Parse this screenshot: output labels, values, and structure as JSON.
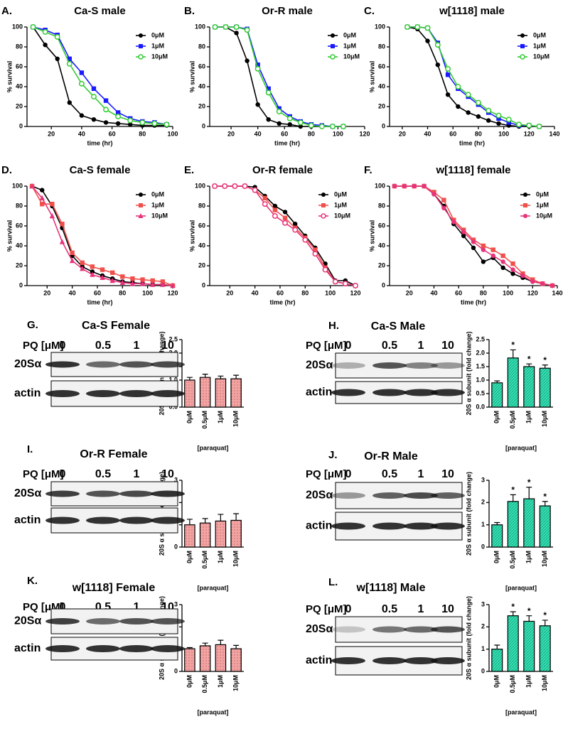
{
  "chart_data": [
    {
      "type": "line",
      "panel": "A.",
      "title": "Ca-S male",
      "xlabel": "time (hr)",
      "ylabel": "% survival",
      "x": [
        8,
        16,
        24,
        32,
        40,
        48,
        56,
        64,
        72,
        80,
        88,
        96
      ],
      "xlim": [
        4,
        100
      ],
      "xticks": [
        20,
        40,
        60,
        80,
        100
      ],
      "ylim": [
        0,
        100
      ],
      "yticks": [
        0,
        20,
        40,
        60,
        80,
        100
      ],
      "series": [
        {
          "name": "0μM",
          "color": "#000000",
          "marker": "circle",
          "values": [
            100,
            82,
            68,
            24,
            11,
            7,
            4,
            3,
            2,
            1,
            1,
            1
          ]
        },
        {
          "name": "1μM",
          "color": "#1a1aff",
          "marker": "square",
          "values": [
            100,
            97,
            92,
            68,
            54,
            38,
            26,
            14,
            8,
            5,
            4,
            2
          ]
        },
        {
          "name": "10μM",
          "color": "#33cc33",
          "marker": "open-circle",
          "values": [
            100,
            95,
            90,
            63,
            43,
            30,
            17,
            10,
            6,
            4,
            3,
            2
          ]
        }
      ]
    },
    {
      "type": "line",
      "panel": "B.",
      "title": "Or-R male",
      "xlabel": "time (hr)",
      "ylabel": "% survival",
      "x": [
        8,
        16,
        24,
        32,
        40,
        48,
        56,
        64,
        72,
        80,
        88,
        96,
        104
      ],
      "xlim": [
        4,
        120
      ],
      "xticks": [
        20,
        40,
        60,
        80,
        100,
        120
      ],
      "ylim": [
        0,
        100
      ],
      "yticks": [
        0,
        20,
        40,
        60,
        80,
        100
      ],
      "series": [
        {
          "name": "0μM",
          "color": "#000000",
          "marker": "circle",
          "values": [
            100,
            100,
            94,
            66,
            22,
            7,
            3,
            2,
            0,
            0,
            0,
            0,
            0
          ]
        },
        {
          "name": "1μM",
          "color": "#1a1aff",
          "marker": "square",
          "values": [
            100,
            100,
            100,
            98,
            62,
            38,
            18,
            10,
            5,
            2,
            1,
            0,
            0
          ]
        },
        {
          "name": "10μM",
          "color": "#33cc33",
          "marker": "open-circle",
          "values": [
            100,
            100,
            100,
            97,
            58,
            34,
            15,
            8,
            4,
            1,
            0,
            0,
            0
          ]
        }
      ]
    },
    {
      "type": "line",
      "panel": "C.",
      "title": "w[1118] male",
      "xlabel": "time (hr)",
      "ylabel": "% survival",
      "x": [
        24,
        32,
        40,
        48,
        56,
        64,
        72,
        80,
        88,
        96,
        104,
        112,
        120,
        128
      ],
      "xlim": [
        10,
        140
      ],
      "xticks": [
        20,
        40,
        60,
        80,
        100,
        120,
        140
      ],
      "ylim": [
        0,
        100
      ],
      "yticks": [
        0,
        20,
        40,
        60,
        80,
        100
      ],
      "series": [
        {
          "name": "0μM",
          "color": "#000000",
          "marker": "circle",
          "values": [
            100,
            98,
            86,
            62,
            32,
            20,
            14,
            10,
            6,
            3,
            1,
            0,
            0,
            0
          ]
        },
        {
          "name": "1μM",
          "color": "#1a1aff",
          "marker": "square",
          "values": [
            100,
            100,
            99,
            84,
            52,
            38,
            30,
            22,
            14,
            8,
            4,
            1,
            1,
            0
          ]
        },
        {
          "name": "10μM",
          "color": "#33cc33",
          "marker": "open-circle",
          "values": [
            100,
            100,
            99,
            82,
            58,
            40,
            32,
            24,
            16,
            11,
            7,
            2,
            1,
            0
          ]
        }
      ]
    },
    {
      "type": "line",
      "panel": "D.",
      "title": "Ca-S female",
      "xlabel": "time (hr)",
      "ylabel": "% survival",
      "x": [
        8,
        16,
        24,
        32,
        40,
        48,
        56,
        64,
        72,
        80,
        88,
        96,
        104,
        112,
        120
      ],
      "xlim": [
        4,
        120
      ],
      "xticks": [
        20,
        40,
        60,
        80,
        100,
        120
      ],
      "ylim": [
        0,
        100
      ],
      "yticks": [
        0,
        20,
        40,
        60,
        80,
        100
      ],
      "series": [
        {
          "name": "0μM",
          "color": "#000000",
          "marker": "circle",
          "values": [
            100,
            96,
            80,
            58,
            30,
            19,
            14,
            10,
            7,
            4,
            3,
            2,
            1,
            1,
            0
          ]
        },
        {
          "name": "1μM",
          "color": "#f0504c",
          "marker": "square",
          "values": [
            100,
            82,
            82,
            62,
            33,
            23,
            19,
            16,
            13,
            9,
            7,
            6,
            5,
            4,
            0
          ]
        },
        {
          "name": "10μM",
          "color": "#e8337a",
          "marker": "triangle",
          "values": [
            100,
            88,
            70,
            44,
            25,
            17,
            11,
            8,
            5,
            3,
            2,
            2,
            1,
            1,
            0
          ]
        }
      ]
    },
    {
      "type": "line",
      "panel": "E.",
      "title": "Or-R female",
      "xlabel": "time (hr)",
      "ylabel": "% survival",
      "x": [
        8,
        16,
        24,
        32,
        40,
        48,
        56,
        64,
        72,
        80,
        88,
        96,
        104,
        112,
        120
      ],
      "xlim": [
        4,
        120
      ],
      "xticks": [
        20,
        40,
        60,
        80,
        100,
        120
      ],
      "ylim": [
        0,
        100
      ],
      "yticks": [
        0,
        20,
        40,
        60,
        80,
        100
      ],
      "series": [
        {
          "name": "0μM",
          "color": "#000000",
          "marker": "circle",
          "values": [
            100,
            100,
            100,
            100,
            99,
            90,
            80,
            74,
            62,
            50,
            38,
            22,
            5,
            5,
            0
          ]
        },
        {
          "name": "1μM",
          "color": "#f0504c",
          "marker": "square",
          "values": [
            100,
            100,
            100,
            100,
            96,
            88,
            76,
            68,
            58,
            48,
            36,
            18,
            4,
            2,
            0
          ]
        },
        {
          "name": "10μM",
          "color": "#e8337a",
          "marker": "open-circle",
          "values": [
            100,
            100,
            100,
            100,
            96,
            82,
            70,
            63,
            56,
            46,
            32,
            16,
            4,
            2,
            0
          ]
        }
      ]
    },
    {
      "type": "line",
      "panel": "F.",
      "title": "w[1118] female",
      "xlabel": "time (hr)",
      "ylabel": "% survival",
      "x": [
        8,
        16,
        24,
        32,
        40,
        48,
        56,
        64,
        72,
        80,
        88,
        96,
        104,
        112,
        120,
        128,
        136
      ],
      "xlim": [
        4,
        140
      ],
      "xticks": [
        20,
        40,
        60,
        80,
        100,
        120,
        140
      ],
      "ylim": [
        0,
        100
      ],
      "yticks": [
        0,
        20,
        40,
        60,
        80,
        100
      ],
      "series": [
        {
          "name": "0μM",
          "color": "#000000",
          "marker": "circle",
          "values": [
            100,
            100,
            100,
            100,
            92,
            80,
            62,
            50,
            38,
            24,
            28,
            18,
            12,
            8,
            4,
            2,
            0
          ]
        },
        {
          "name": "1μM",
          "color": "#f0504c",
          "marker": "square",
          "values": [
            100,
            100,
            100,
            100,
            94,
            86,
            66,
            56,
            46,
            40,
            36,
            30,
            22,
            12,
            6,
            2,
            0
          ]
        },
        {
          "name": "10μM",
          "color": "#e8337a",
          "marker": "circle",
          "values": [
            100,
            100,
            100,
            100,
            92,
            78,
            64,
            54,
            44,
            36,
            30,
            24,
            16,
            10,
            4,
            2,
            0
          ]
        }
      ]
    },
    {
      "type": "bar",
      "ylabel": "20S α subunit (fold change)",
      "xlabel": "[paraquat]",
      "categories": [
        "0μM",
        "0.5μM",
        "1μM",
        "10μM"
      ],
      "values": [
        1.0,
        1.1,
        1.05,
        1.05
      ],
      "errors": [
        0.1,
        0.12,
        0.1,
        0.13
      ],
      "color": "#f4a3a3",
      "pattern": "dots",
      "ylim": [
        0,
        2.5
      ],
      "yticks": [
        {
          "value": 0,
          "label": "0.0"
        },
        0.5,
        {
          "value": 1,
          "label": "1.0"
        },
        1.5,
        {
          "value": 2,
          "label": "2.0"
        },
        2.5
      ]
    },
    {
      "type": "bar",
      "ylabel": "20S α subunit (fold change)",
      "xlabel": "[paraquat]",
      "categories": [
        "0μM",
        "0.5μM",
        "1μM",
        "10μM"
      ],
      "values": [
        0.9,
        1.82,
        1.5,
        1.44
      ],
      "errors": [
        0.07,
        0.3,
        0.1,
        0.12
      ],
      "significance": [
        null,
        "*",
        "*",
        "*"
      ],
      "color": "#33e0b0",
      "pattern": "hatch",
      "ylim": [
        0,
        2.5
      ],
      "yticks": [
        {
          "value": 0,
          "label": "0.0"
        },
        0.5,
        {
          "value": 1,
          "label": "1.0"
        },
        1.5,
        {
          "value": 2,
          "label": "2.0"
        },
        2.5
      ]
    },
    {
      "type": "bar",
      "ylabel": "20S α subunit (fold change)",
      "xlabel": "[paraquat]",
      "categories": [
        "0μM",
        "0.5μM",
        "1μM",
        "10μM"
      ],
      "values": [
        1.0,
        1.08,
        1.17,
        1.2
      ],
      "errors": [
        0.25,
        0.2,
        0.3,
        0.3
      ],
      "color": "#f4a3a3",
      "pattern": "dots",
      "ylim": [
        0,
        3
      ],
      "yticks": [
        0,
        1,
        2,
        3
      ]
    },
    {
      "type": "bar",
      "ylabel": "20S α subunit (fold change)",
      "xlabel": "[paraquat]",
      "categories": [
        "0μM",
        "0.5μM",
        "1μM",
        "10μM"
      ],
      "values": [
        1.0,
        2.05,
        2.17,
        1.85
      ],
      "errors": [
        0.1,
        0.3,
        0.52,
        0.2
      ],
      "significance": [
        null,
        "*",
        "*",
        "*"
      ],
      "color": "#33e0b0",
      "pattern": "hatch",
      "ylim": [
        0,
        3
      ],
      "yticks": [
        0,
        1,
        2,
        3
      ]
    },
    {
      "type": "bar",
      "ylabel": "20S α subunit (fold change)",
      "xlabel": "[paraquat]",
      "categories": [
        "0μM",
        "0.5μM",
        "1μM",
        "10μM"
      ],
      "values": [
        1.02,
        1.15,
        1.2,
        1.02
      ],
      "errors": [
        0.05,
        0.12,
        0.2,
        0.15
      ],
      "color": "#f4a3a3",
      "pattern": "dots",
      "ylim": [
        0,
        3
      ],
      "yticks": [
        0,
        1,
        2,
        3
      ]
    },
    {
      "type": "bar",
      "ylabel": "20S α subunit (fold change)",
      "xlabel": "[paraquat]",
      "categories": [
        "0μM",
        "0.5μM",
        "1μM",
        "10μM"
      ],
      "values": [
        1.0,
        2.5,
        2.25,
        2.05
      ],
      "errors": [
        0.18,
        0.18,
        0.25,
        0.25
      ],
      "significance": [
        null,
        "*",
        "*",
        "*"
      ],
      "color": "#33e0b0",
      "pattern": "hatch",
      "ylim": [
        0,
        3
      ],
      "yticks": [
        0,
        1,
        2,
        3
      ]
    }
  ],
  "blots": [
    {
      "panel": "G.",
      "title": "Ca-S Female",
      "pq_label": "PQ [μM]",
      "lanes": [
        "0",
        "0.5",
        "1",
        "10"
      ],
      "rows": [
        "20Sα",
        "actin"
      ]
    },
    {
      "panel": "H.",
      "title": "Ca-S Male",
      "pq_label": "PQ [μM]",
      "lanes": [
        "0",
        "0.5",
        "1",
        "10"
      ],
      "rows": [
        "20Sα",
        "actin"
      ]
    },
    {
      "panel": "I.",
      "title": "Or-R Female",
      "pq_label": "PQ [μM]",
      "lanes": [
        "0",
        "0.5",
        "1",
        "10"
      ],
      "rows": [
        "20Sα",
        "actin"
      ]
    },
    {
      "panel": "J.",
      "title": "Or-R Male",
      "pq_label": "PQ [μM]",
      "lanes": [
        "0",
        "0.5",
        "1",
        "10"
      ],
      "rows": [
        "20Sα",
        "actin"
      ]
    },
    {
      "panel": "K.",
      "title": "w[1118] Female",
      "pq_label": "PQ [μM]",
      "lanes": [
        "0",
        "0.5",
        "1",
        "10"
      ],
      "rows": [
        "20Sα",
        "actin"
      ]
    },
    {
      "panel": "L.",
      "title": "w[1118] Male",
      "pq_label": "PQ [μM]",
      "lanes": [
        "0",
        "0.5",
        "1",
        "10"
      ],
      "rows": [
        "20Sα",
        "actin"
      ]
    }
  ]
}
